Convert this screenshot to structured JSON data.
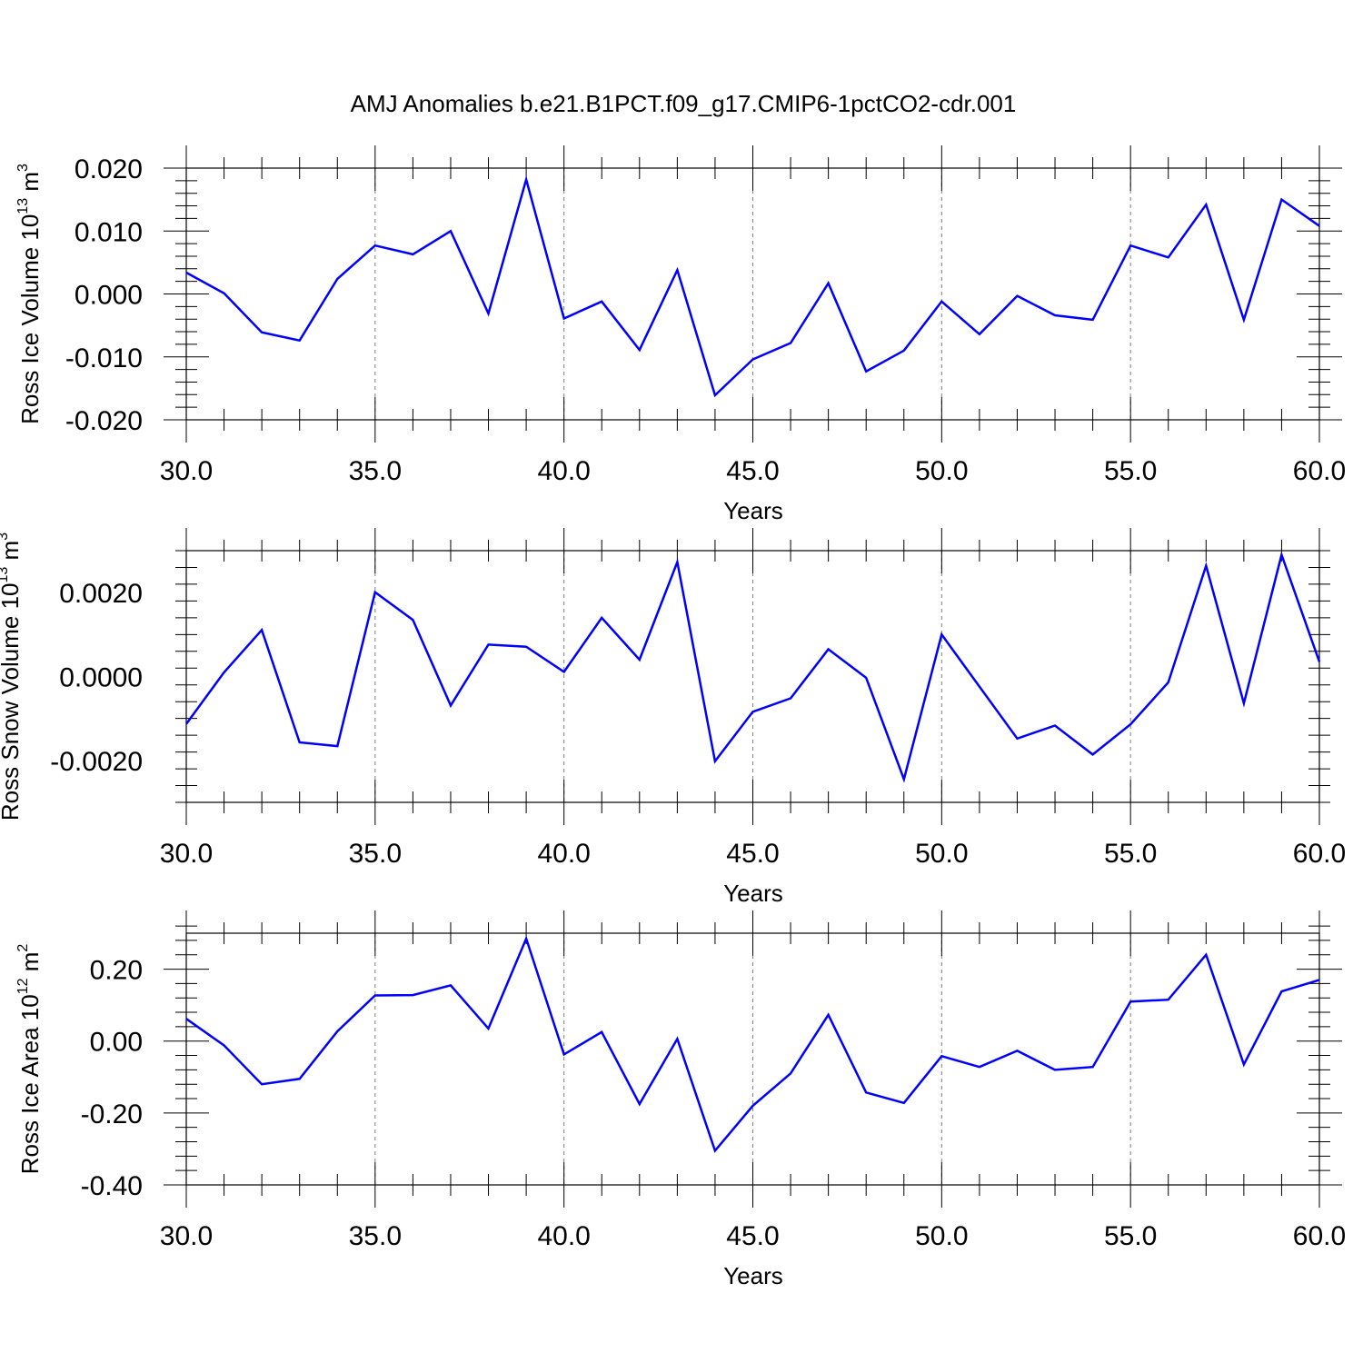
{
  "title": "AMJ Anomalies b.e21.B1PCT.f09_g17.CMIP6-1pctCO2-cdr.001",
  "colors": {
    "series": "#0000ff",
    "axis": "#000000",
    "grid": "#808080"
  },
  "chart_data": [
    {
      "type": "line",
      "xlabel": "Years",
      "ylabel": {
        "prefix": "Ross Ice Volume 10",
        "sup": "13",
        "unit": " m",
        "unit_sup": "3"
      },
      "xlim": [
        30,
        60
      ],
      "ylim": [
        -0.02,
        0.02
      ],
      "x_ticks": [
        30,
        35,
        40,
        45,
        50,
        55,
        60
      ],
      "x_tick_labels": [
        "30.0",
        "35.0",
        "40.0",
        "45.0",
        "50.0",
        "55.0",
        "60.0"
      ],
      "y_ticks": [
        -0.02,
        -0.01,
        0.0,
        0.01,
        0.02
      ],
      "y_tick_labels": [
        "-0.020",
        "-0.010",
        "0.000",
        "0.010",
        "0.020"
      ],
      "grid": "vertical dashed at major x ticks",
      "x": [
        30,
        31,
        32,
        33,
        34,
        35,
        36,
        37,
        38,
        39,
        40,
        41,
        42,
        43,
        44,
        45,
        46,
        47,
        48,
        49,
        50,
        51,
        52,
        53,
        54,
        55,
        56,
        57,
        58,
        59,
        60
      ],
      "values": [
        0.0034,
        0.0001,
        -0.0061,
        -0.0074,
        0.0024,
        0.0077,
        0.0063,
        0.01,
        -0.0031,
        0.0182,
        -0.0039,
        -0.0012,
        -0.0089,
        0.0038,
        -0.0161,
        -0.0104,
        -0.0078,
        0.0017,
        -0.0123,
        -0.009,
        -0.0012,
        -0.0064,
        -0.0003,
        -0.0034,
        -0.0041,
        0.0077,
        0.0058,
        0.0142,
        -0.0041,
        0.015,
        0.0108
      ]
    },
    {
      "type": "line",
      "xlabel": "Years",
      "ylabel": {
        "prefix": "Ross Snow Volume 10",
        "sup": "13",
        "unit": " m",
        "unit_sup": "3"
      },
      "xlim": [
        30,
        60
      ],
      "ylim": [
        -0.003,
        0.003
      ],
      "x_ticks": [
        30,
        35,
        40,
        45,
        50,
        55,
        60
      ],
      "x_tick_labels": [
        "30.0",
        "35.0",
        "40.0",
        "45.0",
        "50.0",
        "55.0",
        "60.0"
      ],
      "y_ticks": [
        -0.002,
        0.0,
        0.002
      ],
      "y_tick_labels": [
        "-0.0020",
        "0.0000",
        "0.0020"
      ],
      "grid": "vertical dashed at major x ticks",
      "x": [
        30,
        31,
        32,
        33,
        34,
        35,
        36,
        37,
        38,
        39,
        40,
        41,
        42,
        43,
        44,
        45,
        46,
        47,
        48,
        49,
        50,
        51,
        52,
        53,
        54,
        55,
        56,
        57,
        58,
        59,
        60
      ],
      "values": [
        -0.00113,
        0.0001,
        0.00111,
        -0.00157,
        -0.00166,
        0.00201,
        0.00135,
        -0.00069,
        0.00076,
        0.00071,
        0.00011,
        0.0014,
        0.0004,
        0.00273,
        -0.00202,
        -0.00084,
        -0.00052,
        0.00065,
        -3e-05,
        -0.00245,
        0.001,
        -0.00024,
        -0.00148,
        -0.00117,
        -0.00186,
        -0.00114,
        -0.00014,
        0.00264,
        -0.00064,
        0.0029,
        0.00035
      ]
    },
    {
      "type": "line",
      "xlabel": "Years",
      "ylabel": {
        "prefix": "Ross Ice Area 10",
        "sup": "12",
        "unit": " m",
        "unit_sup": "2"
      },
      "xlim": [
        30,
        60
      ],
      "ylim": [
        -0.4,
        0.3
      ],
      "x_ticks": [
        30,
        35,
        40,
        45,
        50,
        55,
        60
      ],
      "x_tick_labels": [
        "30.0",
        "35.0",
        "40.0",
        "45.0",
        "50.0",
        "55.0",
        "60.0"
      ],
      "y_ticks": [
        -0.4,
        -0.2,
        0.0,
        0.2
      ],
      "y_tick_labels": [
        "-0.40",
        "-0.20",
        "0.00",
        "0.20"
      ],
      "grid": "vertical dashed at major x ticks",
      "x": [
        30,
        31,
        32,
        33,
        34,
        35,
        36,
        37,
        38,
        39,
        40,
        41,
        42,
        43,
        44,
        45,
        46,
        47,
        48,
        49,
        50,
        51,
        52,
        53,
        54,
        55,
        56,
        57,
        58,
        59,
        60
      ],
      "values": [
        0.062,
        -0.012,
        -0.12,
        -0.105,
        0.027,
        0.127,
        0.128,
        0.155,
        0.035,
        0.285,
        -0.037,
        0.025,
        -0.175,
        0.006,
        -0.305,
        -0.18,
        -0.09,
        0.073,
        -0.143,
        -0.172,
        -0.042,
        -0.072,
        -0.027,
        -0.08,
        -0.072,
        0.11,
        0.115,
        0.24,
        -0.065,
        0.138,
        0.17
      ]
    }
  ]
}
